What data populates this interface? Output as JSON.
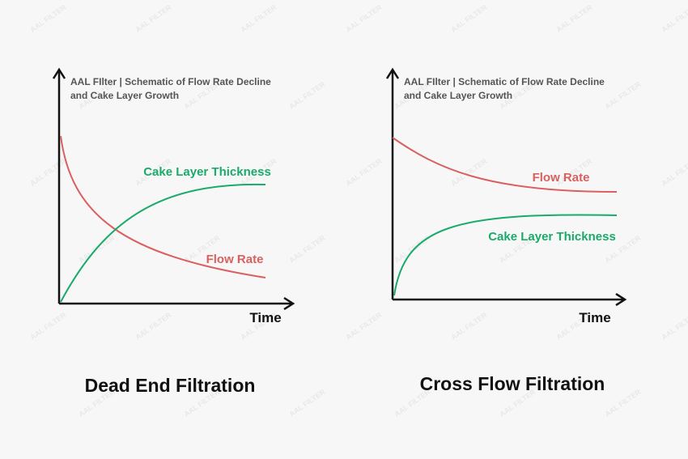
{
  "watermark": "AAL FILTER",
  "panels": [
    {
      "subtitle": [
        "AAL FIlter | Schematic of Flow Rate Decline",
        "and Cake Layer Growth"
      ],
      "cake_label": "Cake Layer Thickness",
      "flow_label": "Flow Rate",
      "x_label": "Time",
      "caption": "Dead End Filtration"
    },
    {
      "subtitle": [
        "AAL FIlter | Schematic of Flow Rate Decline",
        "and Cake Layer Growth"
      ],
      "cake_label": "Cake Layer Thickness",
      "flow_label": "Flow Rate",
      "x_label": "Time",
      "caption": "Cross Flow Filtration"
    }
  ]
}
